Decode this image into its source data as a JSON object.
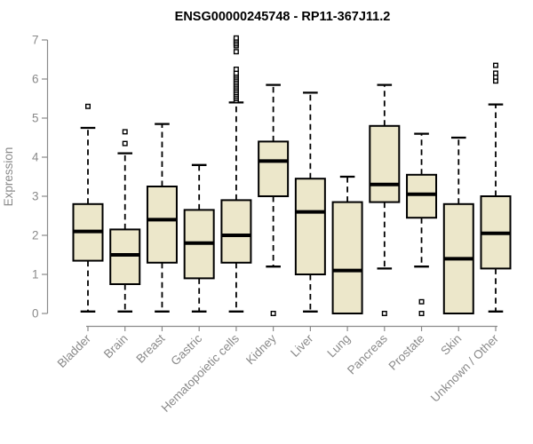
{
  "title": "ENSG00000245748 - RP11-367J11.2",
  "chart_data": {
    "type": "boxplot",
    "title": "ENSG00000245748 - RP11-367J11.2",
    "ylabel": "Expression",
    "xlabel": "",
    "ylim": [
      0,
      7
    ],
    "yticks": [
      0,
      1,
      2,
      3,
      4,
      5,
      6,
      7
    ],
    "grid": false,
    "legend": false,
    "categories": [
      "Bladder",
      "Brain",
      "Breast",
      "Gastric",
      "Hematopoietic cells",
      "Kidney",
      "Liver",
      "Lung",
      "Pancreas",
      "Prostate",
      "Skin",
      "Unknown / Other"
    ],
    "boxes": [
      {
        "category": "Bladder",
        "whisker_low": 0.05,
        "q1": 1.35,
        "median": 2.1,
        "q3": 2.8,
        "whisker_high": 4.75,
        "outliers": [
          5.3
        ]
      },
      {
        "category": "Brain",
        "whisker_low": 0.05,
        "q1": 0.75,
        "median": 1.5,
        "q3": 2.15,
        "whisker_high": 4.1,
        "outliers": [
          4.35,
          4.65
        ]
      },
      {
        "category": "Breast",
        "whisker_low": 0.05,
        "q1": 1.3,
        "median": 2.4,
        "q3": 3.25,
        "whisker_high": 4.85,
        "outliers": []
      },
      {
        "category": "Gastric",
        "whisker_low": 0.05,
        "q1": 0.9,
        "median": 1.8,
        "q3": 2.65,
        "whisker_high": 3.8,
        "outliers": []
      },
      {
        "category": "Hematopoietic cells",
        "whisker_low": 0.05,
        "q1": 1.3,
        "median": 2.0,
        "q3": 2.9,
        "whisker_high": 5.4,
        "outliers": [
          5.45,
          5.5,
          5.55,
          5.6,
          5.65,
          5.7,
          5.75,
          5.8,
          5.85,
          5.9,
          5.95,
          6.0,
          6.05,
          6.1,
          6.15,
          6.25,
          6.7,
          6.85,
          6.9,
          6.95,
          7.0,
          7.05
        ]
      },
      {
        "category": "Kidney",
        "whisker_low": 1.2,
        "q1": 3.0,
        "median": 3.9,
        "q3": 4.4,
        "whisker_high": 5.85,
        "outliers": [
          0.0
        ]
      },
      {
        "category": "Liver",
        "whisker_low": 0.05,
        "q1": 1.0,
        "median": 2.6,
        "q3": 3.45,
        "whisker_high": 5.65,
        "outliers": []
      },
      {
        "category": "Lung",
        "whisker_low": 0.0,
        "q1": 0.0,
        "median": 1.1,
        "q3": 2.85,
        "whisker_high": 3.5,
        "outliers": []
      },
      {
        "category": "Pancreas",
        "whisker_low": 1.15,
        "q1": 2.85,
        "median": 3.3,
        "q3": 4.8,
        "whisker_high": 5.85,
        "outliers": [
          0.0
        ]
      },
      {
        "category": "Prostate",
        "whisker_low": 1.2,
        "q1": 2.45,
        "median": 3.05,
        "q3": 3.55,
        "whisker_high": 4.6,
        "outliers": [
          0.3,
          0.0
        ]
      },
      {
        "category": "Skin",
        "whisker_low": 0.0,
        "q1": 0.0,
        "median": 1.4,
        "q3": 2.8,
        "whisker_high": 4.5,
        "outliers": []
      },
      {
        "category": "Unknown / Other",
        "whisker_low": 0.05,
        "q1": 1.15,
        "median": 2.05,
        "q3": 3.0,
        "whisker_high": 5.35,
        "outliers": [
          5.95,
          6.05,
          6.15,
          6.35
        ]
      }
    ],
    "style": {
      "box_fill": "#ECE7CA",
      "box_stroke": "#000000",
      "median_color": "#000000",
      "outlier_fill": "#ffffff",
      "axis_color": "#8a8a8a",
      "label_color": "#8a8a8a",
      "title_color": "#000000",
      "background": "#ffffff"
    }
  }
}
